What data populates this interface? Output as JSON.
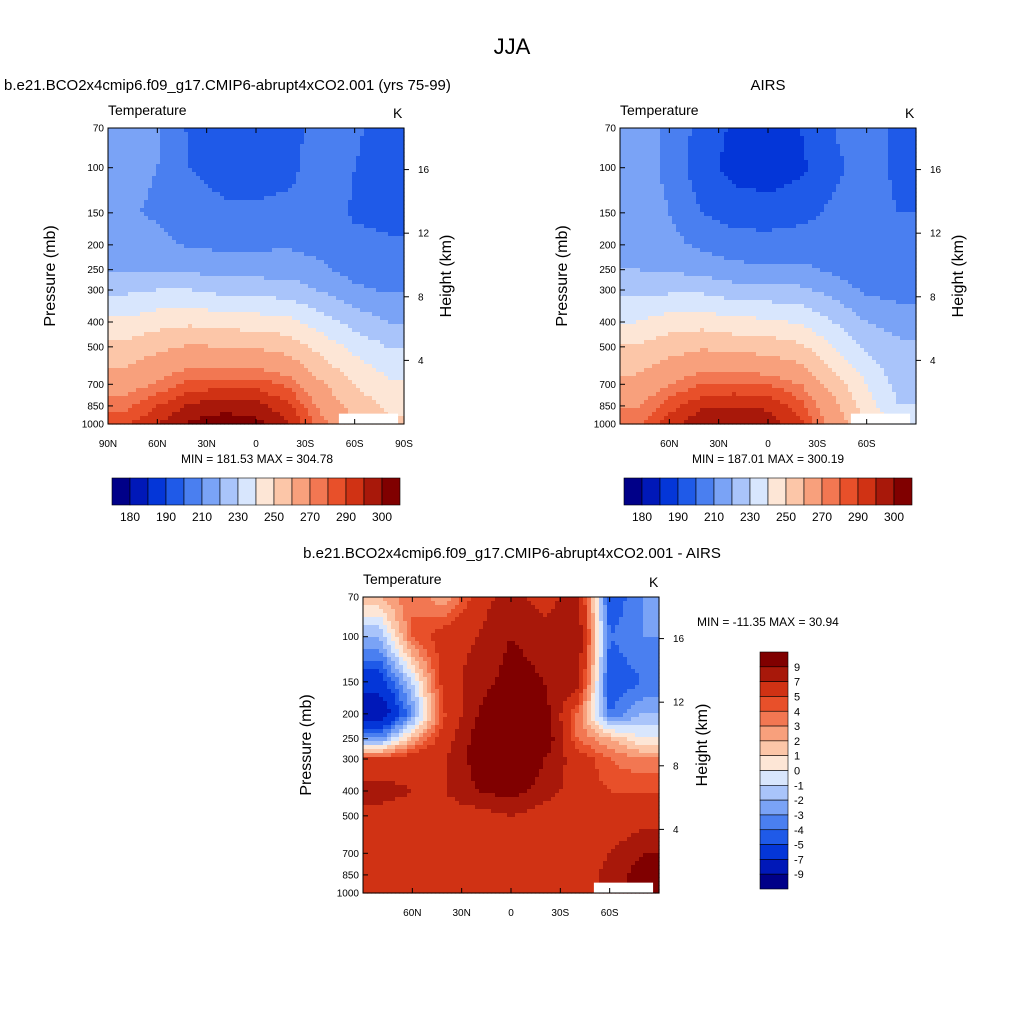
{
  "page_title": "JJA",
  "palettes": {
    "abs": [
      "#000088",
      "#0018b8",
      "#0436d8",
      "#1f5ae8",
      "#4a7ff0",
      "#7aa3f6",
      "#a9c4fa",
      "#d8e6fd",
      "#fde6d6",
      "#fcc6a8",
      "#f8a07c",
      "#f27752",
      "#e8502a",
      "#d03214",
      "#a8180a",
      "#800000"
    ],
    "diff": [
      "#000088",
      "#0018b8",
      "#0436d8",
      "#1f5ae8",
      "#4a7ff0",
      "#7aa3f6",
      "#a9c4fa",
      "#d8e6fd",
      "#fde6d6",
      "#fcc6a8",
      "#f8a07c",
      "#f27752",
      "#e8502a",
      "#d03214",
      "#a8180a",
      "#800000"
    ]
  },
  "chart_data": [
    {
      "type": "heatmap",
      "title": "b.e21.BCO2x4cmip6.f09_g17.CMIP6-abrupt4xCO2.001 (yrs 75-99)",
      "variable": "Temperature",
      "units": "K",
      "ylabel": "Pressure (mb)",
      "y2label": "Height (km)",
      "y_ticks": [
        "70",
        "100",
        "150",
        "200",
        "250",
        "300",
        "400",
        "500",
        "700",
        "850",
        "1000"
      ],
      "y2_ticks": [
        "16",
        "12",
        "8",
        "4"
      ],
      "x_ticks": [
        "90N",
        "60N",
        "30N",
        "0",
        "30S",
        "60S",
        "90S"
      ],
      "stats": "MIN = 181.53  MAX = 304.78",
      "colorbar_labels": [
        "180",
        "190",
        "210",
        "230",
        "250",
        "270",
        "290",
        "300"
      ],
      "lat_centers": [
        80,
        60,
        40,
        20,
        0,
        -20,
        -40,
        -60,
        -80
      ],
      "pressure_levels": [
        70,
        100,
        150,
        200,
        250,
        300,
        400,
        500,
        700,
        850,
        1000
      ],
      "values": [
        [
          224,
          222,
          208,
          203,
          202,
          204,
          218,
          212,
          204
        ],
        [
          222,
          220,
          210,
          206,
          205,
          207,
          216,
          210,
          206
        ],
        [
          221,
          219,
          215,
          212,
          212,
          213,
          214,
          209,
          208
        ],
        [
          223,
          222,
          219,
          218,
          218,
          219,
          216,
          212,
          211
        ],
        [
          229,
          229,
          228,
          226,
          226,
          226,
          222,
          216,
          214
        ],
        [
          238,
          240,
          240,
          237,
          236,
          235,
          229,
          222,
          219
        ],
        [
          252,
          256,
          258,
          256,
          255,
          253,
          245,
          236,
          230
        ],
        [
          263,
          268,
          271,
          270,
          269,
          266,
          256,
          247,
          240
        ],
        [
          276,
          281,
          287,
          288,
          288,
          284,
          271,
          260,
          252
        ],
        [
          283,
          290,
          296,
          298,
          297,
          291,
          278,
          266,
          258
        ],
        [
          289,
          295,
          301,
          303,
          302,
          296,
          282,
          270,
          262
        ]
      ]
    },
    {
      "type": "heatmap",
      "title": "AIRS",
      "variable": "Temperature",
      "units": "K",
      "ylabel": "Pressure (mb)",
      "y2label": "Height (km)",
      "y_ticks": [
        "70",
        "100",
        "150",
        "200",
        "250",
        "300",
        "400",
        "500",
        "700",
        "850",
        "1000"
      ],
      "y2_ticks": [
        "16",
        "12",
        "8",
        "4"
      ],
      "x_ticks": [
        "60N",
        "30N",
        "0",
        "30S",
        "60S"
      ],
      "stats": "MIN = 187.01  MAX = 300.19",
      "colorbar_labels": [
        "180",
        "190",
        "210",
        "230",
        "250",
        "270",
        "290",
        "300"
      ],
      "lat_centers": [
        80,
        60,
        40,
        20,
        0,
        -20,
        -40,
        -60,
        -80
      ],
      "pressure_levels": [
        70,
        100,
        150,
        200,
        250,
        300,
        400,
        500,
        700,
        850,
        1000
      ],
      "values": [
        [
          226,
          218,
          206,
          198,
          196,
          200,
          210,
          216,
          206
        ],
        [
          228,
          216,
          204,
          196,
          194,
          198,
          208,
          214,
          208
        ],
        [
          229,
          220,
          210,
          206,
          205,
          207,
          212,
          212,
          210
        ],
        [
          228,
          223,
          218,
          214,
          214,
          215,
          215,
          212,
          212
        ],
        [
          230,
          229,
          226,
          223,
          222,
          222,
          218,
          214,
          214
        ],
        [
          237,
          238,
          238,
          234,
          233,
          232,
          226,
          218,
          216
        ],
        [
          250,
          255,
          256,
          253,
          252,
          249,
          240,
          230,
          226
        ],
        [
          261,
          266,
          269,
          267,
          266,
          262,
          250,
          238,
          232
        ],
        [
          273,
          280,
          285,
          286,
          285,
          280,
          266,
          250,
          236
        ],
        [
          279,
          288,
          294,
          295,
          294,
          287,
          273,
          255,
          240
        ],
        [
          284,
          293,
          299,
          299,
          298,
          291,
          277,
          260,
          244
        ]
      ]
    },
    {
      "type": "heatmap",
      "title": "b.e21.BCO2x4cmip6.f09_g17.CMIP6-abrupt4xCO2.001 - AIRS",
      "variable": "Temperature",
      "units": "K",
      "ylabel": "Pressure (mb)",
      "y2label": "Height (km)",
      "y_ticks": [
        "70",
        "100",
        "150",
        "200",
        "250",
        "300",
        "400",
        "500",
        "700",
        "850",
        "1000"
      ],
      "y2_ticks": [
        "16",
        "12",
        "8",
        "4"
      ],
      "x_ticks": [
        "60N",
        "30N",
        "0",
        "30S",
        "60S"
      ],
      "stats": "MIN = -11.35  MAX =  30.94",
      "colorbar_labels": [
        "9",
        "7",
        "5",
        "4",
        "3",
        "2",
        "1",
        "0",
        "-1",
        "-2",
        "-3",
        "-4",
        "-5",
        "-7",
        "-9"
      ],
      "lat_centers": [
        80,
        60,
        40,
        20,
        0,
        -20,
        -40,
        -60,
        -80
      ],
      "pressure_levels": [
        70,
        100,
        150,
        200,
        250,
        300,
        400,
        500,
        700,
        850,
        1000
      ],
      "values": [
        [
          2,
          4,
          2,
          6,
          8,
          6,
          8,
          -5,
          -3
        ],
        [
          -2,
          4,
          6,
          7,
          9,
          8,
          9,
          -4,
          -3
        ],
        [
          -6,
          -1,
          6,
          8,
          10,
          9,
          8,
          -5,
          -4
        ],
        [
          -9,
          -3,
          5,
          9,
          12,
          10,
          4,
          -4,
          -2
        ],
        [
          -3,
          2,
          6,
          10,
          14,
          11,
          4,
          2,
          0
        ],
        [
          5,
          6,
          7,
          10,
          13,
          9,
          6,
          4,
          3
        ],
        [
          8,
          7,
          7,
          9,
          10,
          8,
          6,
          5,
          5
        ],
        [
          6,
          6,
          6,
          6,
          7,
          6,
          5,
          5,
          6
        ],
        [
          6,
          5,
          5,
          5,
          5,
          5,
          5,
          7,
          9
        ],
        [
          5,
          5,
          5,
          5,
          5,
          5,
          5,
          8,
          10
        ],
        [
          5,
          5,
          5,
          5,
          5,
          5,
          5,
          8,
          10
        ]
      ]
    }
  ]
}
